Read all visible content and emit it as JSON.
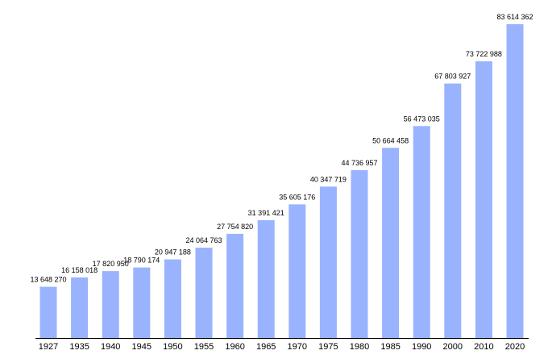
{
  "chart_data": {
    "type": "bar",
    "title": "",
    "xlabel": "",
    "ylabel": "",
    "ylim": [
      0,
      85000000
    ],
    "grid": false,
    "bar_color": "#99b3ff",
    "axis_color": "#000000",
    "categories": [
      "1927",
      "1935",
      "1940",
      "1945",
      "1950",
      "1955",
      "1960",
      "1965",
      "1970",
      "1975",
      "1980",
      "1985",
      "1990",
      "2000",
      "2010",
      "2020"
    ],
    "values": [
      13648270,
      16158018,
      17820950,
      18790174,
      20947188,
      24064763,
      27754820,
      31391421,
      35605176,
      40347719,
      44736957,
      50664458,
      56473035,
      67803927,
      73722988,
      83614362
    ],
    "data_labels": [
      "13 648 270",
      "16 158 018",
      "17 820 950",
      "18 790 174",
      "20 947 188",
      "24 064 763",
      "27 754 820",
      "31 391 421",
      "35 605 176",
      "40 347 719",
      "44 736 957",
      "50 664 458",
      "56 473 035",
      "67 803 927",
      "73 722 988",
      "83 614 362"
    ]
  }
}
